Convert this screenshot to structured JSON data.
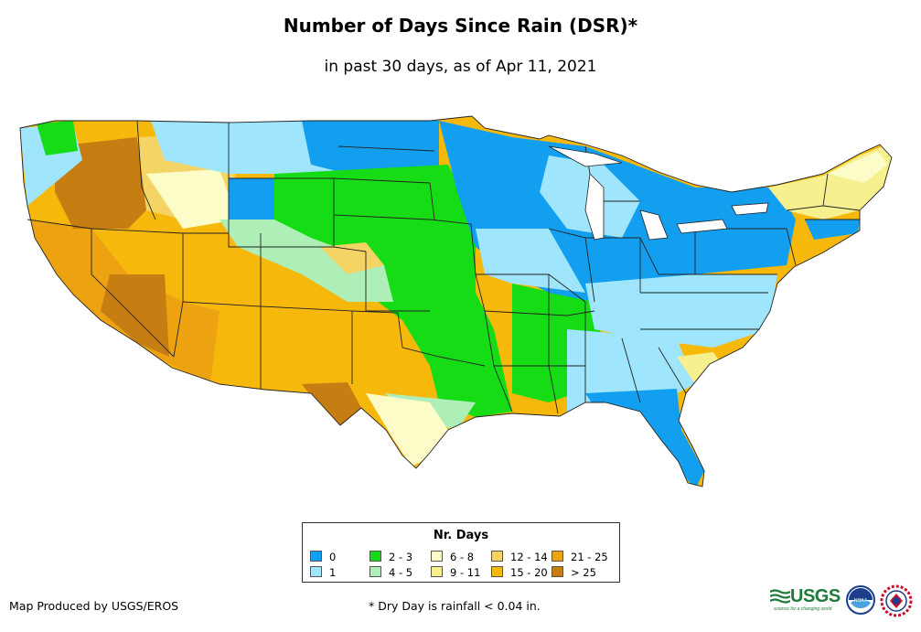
{
  "title": "Number of Days Since Rain (DSR)*",
  "subtitle": "in past 30 days, as of Apr 11, 2021",
  "legend": {
    "title": "Nr. Days",
    "classes": [
      {
        "label": "0",
        "color": "#129ff0"
      },
      {
        "label": "1",
        "color": "#9fe5fb"
      },
      {
        "label": "2 - 3",
        "color": "#16dc16"
      },
      {
        "label": "4 - 5",
        "color": "#aeeeb7"
      },
      {
        "label": "6 - 8",
        "color": "#fcfcc8"
      },
      {
        "label": "9 - 11",
        "color": "#f6f08e"
      },
      {
        "label": "12 - 14",
        "color": "#f5d466"
      },
      {
        "label": "15 - 20",
        "color": "#f7b80c"
      },
      {
        "label": "21 - 25",
        "color": "#eda212"
      },
      {
        "label": "> 25",
        "color": "#c67d12"
      }
    ]
  },
  "credit": "Map Produced by USGS/EROS",
  "footnote": "* Dry Day is rainfall < 0.04 in.",
  "logos": {
    "usgs_text": "USGS",
    "usgs_tagline": "science for a changing world",
    "noaa_text": "NOAA",
    "nws_icon": "nws-seal-icon"
  }
}
